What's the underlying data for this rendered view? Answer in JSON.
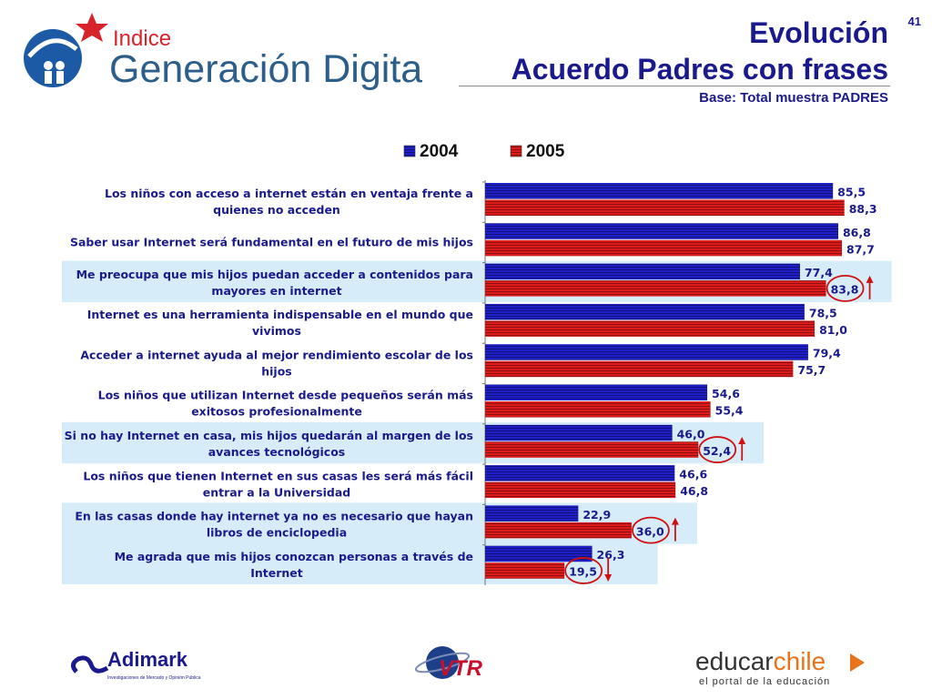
{
  "page_number": "41",
  "title_line1": "Evolución",
  "title_line2": "Acuerdo Padres con frases",
  "base": "Base: Total muestra PADRES",
  "logos": {
    "brand_small": "Indice",
    "brand_large": "Generación Digital",
    "adimark": "Adimark",
    "adimark_tagline": "Investigaciones de Mercado y Opinión Pública",
    "vtr": "VTR",
    "educar_a": "educar",
    "educar_b": "chile",
    "educar_tagline": "el portal de la educación"
  },
  "colors": {
    "series_2004": "#1f1fc8",
    "series_2005": "#dd1b1b",
    "highlight": "#d6ecf9",
    "label": "#1a1a8c",
    "circle": "#d01010"
  },
  "chart_data": {
    "type": "bar",
    "orientation": "horizontal",
    "xlim": [
      0,
      100
    ],
    "legend_position": "top",
    "categories": [
      [
        "Los niños con acceso a internet están en ventaja frente a",
        "quienes no acceden"
      ],
      [
        "Saber usar Internet será fundamental en el futuro de mis hijos"
      ],
      [
        "Me preocupa que mis hijos puedan acceder a contenidos para",
        "mayores en internet"
      ],
      [
        "Internet es una herramienta indispensable en el mundo que",
        "vivimos"
      ],
      [
        "Acceder a internet ayuda al mejor rendimiento escolar de los",
        "hijos"
      ],
      [
        "Los niños que utilizan Internet desde pequeños serán más",
        "exitosos profesionalmente"
      ],
      [
        "Si no hay Internet en casa, mis hijos quedarán al margen de los",
        "avances tecnológicos"
      ],
      [
        "Los niños que tienen Internet en sus casas les será más fácil",
        "entrar a la Universidad"
      ],
      [
        "En las casas donde hay internet ya no es necesario que hayan",
        "libros  de enciclopedia"
      ],
      [
        "Me agrada que mis hijos conozcan personas a través de",
        "Internet"
      ]
    ],
    "series": [
      {
        "name": "2004",
        "values": [
          85.5,
          86.8,
          77.4,
          78.5,
          79.4,
          54.6,
          46.0,
          46.6,
          22.9,
          26.3
        ],
        "labels": [
          "85,5",
          "86,8",
          "77,4",
          "78,5",
          "79,4",
          "54,6",
          "46,0",
          "46,6",
          "22,9",
          "26,3"
        ]
      },
      {
        "name": "2005",
        "values": [
          88.3,
          87.7,
          83.8,
          81.0,
          75.7,
          55.4,
          52.4,
          46.8,
          36.0,
          19.5
        ],
        "labels": [
          "88,3",
          "87,7",
          "83,8",
          "81,0",
          "75,7",
          "55,4",
          "52,4",
          "46,8",
          "36,0",
          "19,5"
        ]
      }
    ],
    "highlighted": [
      2,
      6,
      8,
      9
    ],
    "changes": [
      {
        "category": 2,
        "direction": "up"
      },
      {
        "category": 6,
        "direction": "up"
      },
      {
        "category": 8,
        "direction": "up"
      },
      {
        "category": 9,
        "direction": "down"
      }
    ]
  }
}
